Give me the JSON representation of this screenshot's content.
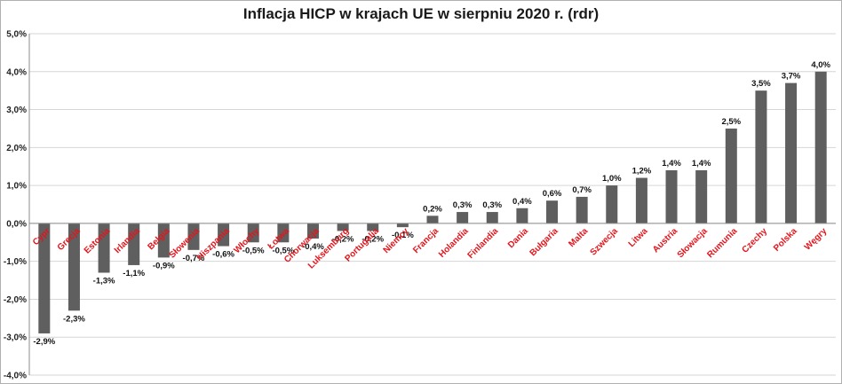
{
  "chart_data": {
    "type": "bar",
    "title": "Inflacja HICP w krajach UE w sierpniu 2020 r. (rdr)",
    "xlabel": "",
    "ylabel": "",
    "ylim": [
      -4.0,
      5.0
    ],
    "yticks": [
      5.0,
      4.0,
      3.0,
      2.0,
      1.0,
      0.0,
      -1.0,
      -2.0,
      -3.0,
      -4.0
    ],
    "ytick_labels": [
      "5,0%",
      "4,0%",
      "3,0%",
      "2,0%",
      "1,0%",
      "0,0%",
      "-1,0%",
      "-2,0%",
      "-3,0%",
      "-4,0%"
    ],
    "grid": true,
    "categories": [
      "Cypr",
      "Grecja",
      "Estonia",
      "Irlandia",
      "Belgia",
      "Słowenia",
      "Hiszpania",
      "Włochy",
      "Łotwa",
      "Chorwacja",
      "Luksemburg",
      "Portugalia",
      "Niemcy",
      "Francja",
      "Holandia",
      "Finlandia",
      "Dania",
      "Bułgaria",
      "Malta",
      "Szwecja",
      "Litwa",
      "Austria",
      "Słowacja",
      "Rumunia",
      "Czechy",
      "Polska",
      "Węgry"
    ],
    "values": [
      -2.9,
      -2.3,
      -1.3,
      -1.1,
      -0.9,
      -0.7,
      -0.6,
      -0.5,
      -0.5,
      -0.4,
      -0.2,
      -0.2,
      -0.1,
      0.2,
      0.3,
      0.3,
      0.4,
      0.6,
      0.7,
      1.0,
      1.2,
      1.4,
      1.4,
      2.5,
      3.5,
      3.7,
      4.0
    ],
    "value_labels": [
      "-2,9%",
      "-2,3%",
      "-1,3%",
      "-1,1%",
      "-0,9%",
      "-0,7%",
      "-0,6%",
      "-0,5%",
      "-0,5%",
      "-0,4%",
      "-0,2%",
      "-0,2%",
      "-0,1%",
      "0,2%",
      "0,3%",
      "0,3%",
      "0,4%",
      "0,6%",
      "0,7%",
      "1,0%",
      "1,2%",
      "1,4%",
      "1,4%",
      "2,5%",
      "3,5%",
      "3,7%",
      "4,0%"
    ],
    "colors": {
      "bar": "#5f5f5f",
      "category_label": "#e3141b",
      "grid": "#d6d6d6",
      "axis": "#8c8c8c"
    }
  }
}
